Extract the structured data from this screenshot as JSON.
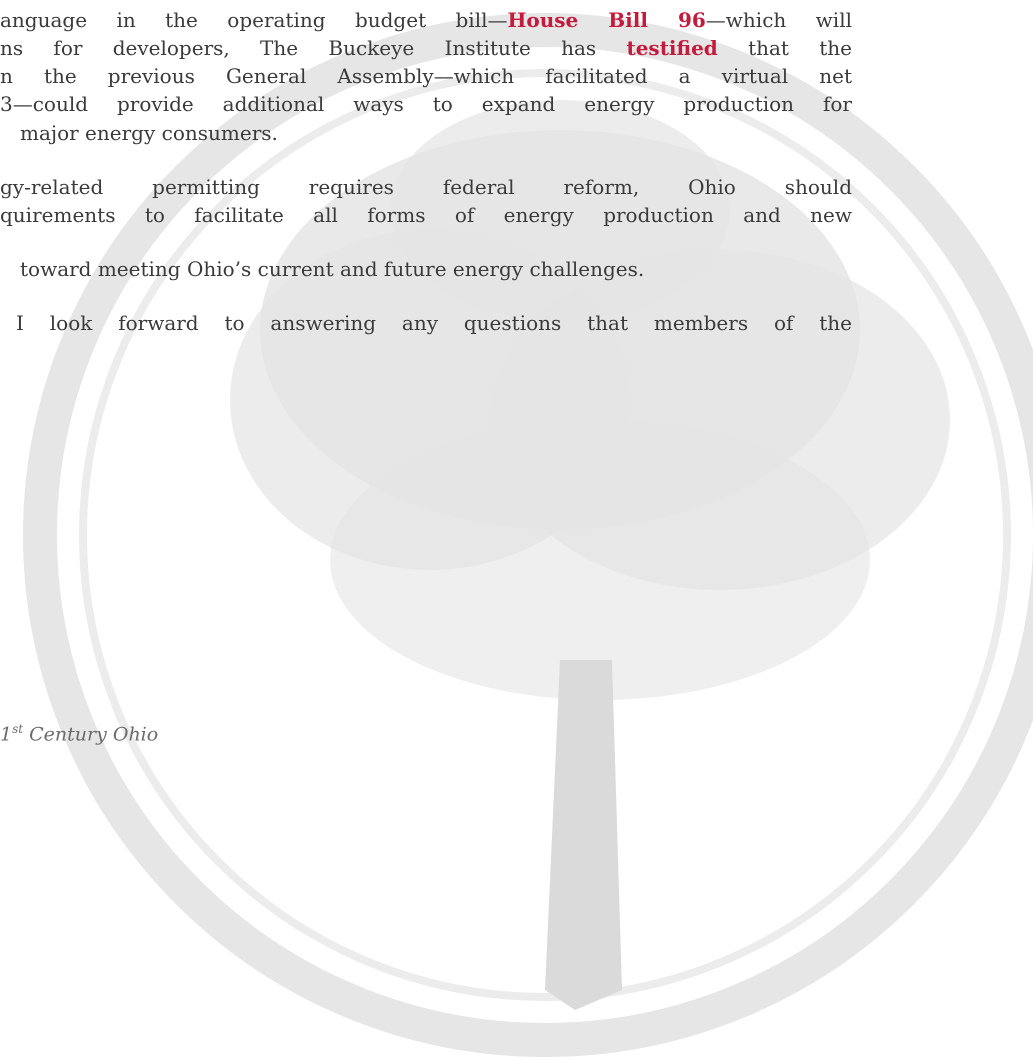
{
  "paragraphs": [
    {
      "lines": [
        [
          "anguage in the operating budget bill—",
          "House Bill 96",
          "—which will"
        ],
        [
          "ns for developers, The Buckeye Institute has ",
          "testified",
          " that the"
        ],
        [
          "n the previous General Assembly—which facilitated a virtual net"
        ],
        [
          "3—could provide additional ways to expand energy production for"
        ],
        [
          "major energy consumers."
        ]
      ]
    },
    {
      "lines": [
        [
          "gy-related permitting requires federal reform, Ohio should"
        ],
        [
          "quirements to facilitate all forms of energy production and new"
        ]
      ]
    },
    {
      "lines": [
        [
          "toward meeting Ohio’s current and future energy challenges."
        ]
      ]
    },
    {
      "lines": [
        [
          "I look forward to answering any questions that members of the"
        ]
      ]
    }
  ],
  "footer": [
    "1",
    "st",
    " Century Ohio"
  ]
}
